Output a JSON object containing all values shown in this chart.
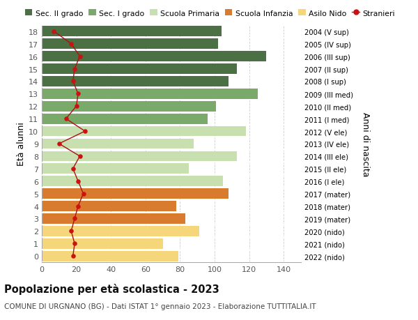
{
  "ages": [
    18,
    17,
    16,
    15,
    14,
    13,
    12,
    11,
    10,
    9,
    8,
    7,
    6,
    5,
    4,
    3,
    2,
    1,
    0
  ],
  "years": [
    "2004 (V sup)",
    "2005 (IV sup)",
    "2006 (III sup)",
    "2007 (II sup)",
    "2008 (I sup)",
    "2009 (III med)",
    "2010 (II med)",
    "2011 (I med)",
    "2012 (V ele)",
    "2013 (IV ele)",
    "2014 (III ele)",
    "2015 (II ele)",
    "2016 (I ele)",
    "2017 (mater)",
    "2018 (mater)",
    "2019 (mater)",
    "2020 (nido)",
    "2021 (nido)",
    "2022 (nido)"
  ],
  "bar_values": [
    104,
    102,
    130,
    113,
    108,
    125,
    101,
    96,
    118,
    88,
    113,
    85,
    105,
    108,
    78,
    83,
    91,
    70,
    79
  ],
  "bar_colors": [
    "#4a7043",
    "#4a7043",
    "#4a7043",
    "#4a7043",
    "#4a7043",
    "#7aaa6a",
    "#7aaa6a",
    "#7aaa6a",
    "#c8e0b0",
    "#c8e0b0",
    "#c8e0b0",
    "#c8e0b0",
    "#c8e0b0",
    "#d97b2e",
    "#d97b2e",
    "#d97b2e",
    "#f5d67a",
    "#f5d67a",
    "#f5d67a"
  ],
  "stranieri_values": [
    7,
    17,
    22,
    19,
    18,
    21,
    20,
    14,
    25,
    10,
    22,
    18,
    21,
    24,
    21,
    19,
    17,
    19,
    18
  ],
  "title": "Popolazione per età scolastica - 2023",
  "subtitle": "COMUNE DI URGNANO (BG) - Dati ISTAT 1° gennaio 2023 - Elaborazione TUTTITALIA.IT",
  "ylabel_left": "Età alunni",
  "ylabel_right": "Anni di nascita",
  "xlim": [
    0,
    150
  ],
  "xticks": [
    0,
    20,
    40,
    60,
    80,
    100,
    120,
    140
  ],
  "legend_labels": [
    "Sec. II grado",
    "Sec. I grado",
    "Scuola Primaria",
    "Scuola Infanzia",
    "Asilo Nido",
    "Stranieri"
  ],
  "legend_colors": [
    "#4a7043",
    "#7aaa6a",
    "#c8e0b0",
    "#d97b2e",
    "#f5d67a",
    "#cc1111"
  ],
  "background_color": "#ffffff",
  "grid_color": "#cccccc"
}
